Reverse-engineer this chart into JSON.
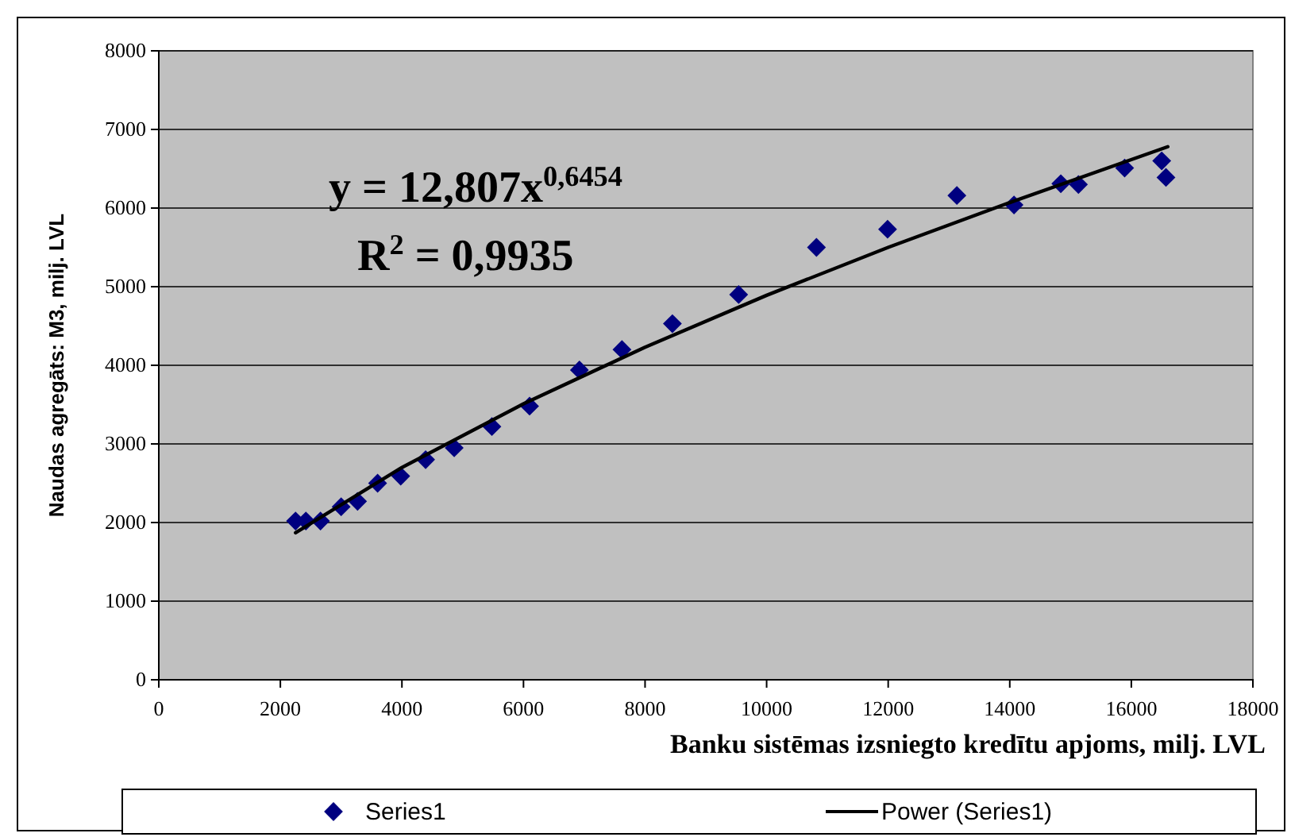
{
  "chart_data": {
    "type": "scatter",
    "xlabel": "Banku sistēmas izsniegto kredītu apjoms, milj. LVL",
    "ylabel": "Naudas agregāts: M3, milj. LVL",
    "xlim": [
      0,
      18000
    ],
    "xticks": [
      0,
      2000,
      4000,
      6000,
      8000,
      10000,
      12000,
      14000,
      16000,
      18000
    ],
    "ylim": [
      0,
      8000
    ],
    "yticks": [
      0,
      1000,
      2000,
      3000,
      4000,
      5000,
      6000,
      7000,
      8000
    ],
    "grid": "y",
    "legend": "bottom",
    "annotations": [
      "y = 12,807x$^{0,6454}$",
      "R$^{2}$ = 0,9935"
    ],
    "series": [
      {
        "name": "Series1",
        "marker": "diamond",
        "color": "#000080",
        "x": [
          2250,
          2420,
          2660,
          3000,
          3270,
          3600,
          3980,
          4390,
          4860,
          5480,
          6100,
          6920,
          7620,
          8450,
          9540,
          10820,
          11990,
          13130,
          14070,
          14840,
          15130,
          15890,
          16500,
          16570
        ],
        "values": [
          2020,
          2020,
          2020,
          2200,
          2270,
          2500,
          2590,
          2800,
          2950,
          3220,
          3480,
          3940,
          4200,
          4530,
          4900,
          5500,
          5730,
          6160,
          6040,
          6310,
          6300,
          6510,
          6600,
          6390
        ]
      },
      {
        "name": "Power (Series1)",
        "type": "line",
        "marker": "none",
        "color": "#000000",
        "line_style": "solid",
        "x": [
          2250,
          4000,
          6000,
          8000,
          10000,
          12000,
          14000,
          16600
        ],
        "values": [
          1870,
          2700,
          3510,
          4230,
          4890,
          5500,
          6070,
          6780
        ]
      }
    ]
  }
}
